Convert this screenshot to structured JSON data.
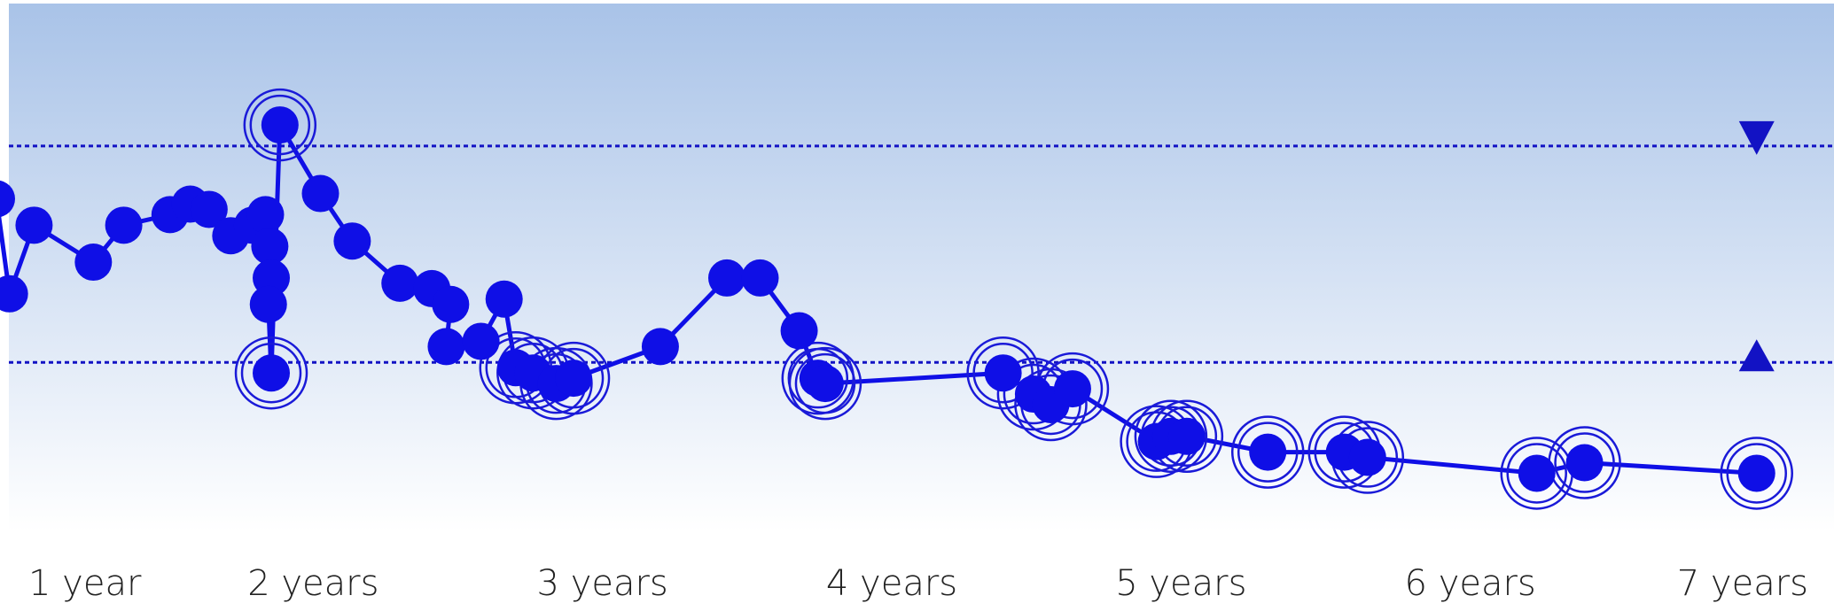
{
  "chart_data": {
    "type": "line",
    "title": "",
    "xlabel": "",
    "ylabel": "",
    "x_unit": "years",
    "xlim": [
      0.9,
      7.1
    ],
    "ylim": [
      0,
      100
    ],
    "x_ticks": [
      {
        "value": 1,
        "label": "1 year"
      },
      {
        "value": 2,
        "label": "2 years"
      },
      {
        "value": 3,
        "label": "3 years"
      },
      {
        "value": 4,
        "label": "4 years"
      },
      {
        "value": 5,
        "label": "5 years"
      },
      {
        "value": 6,
        "label": "6 years"
      },
      {
        "value": 7,
        "label": "7 years"
      }
    ],
    "reference_lines": [
      {
        "name": "upper",
        "y": 73,
        "marker": "down-triangle"
      },
      {
        "name": "lower",
        "y": 32,
        "marker": "up-triangle"
      }
    ],
    "grid": false,
    "legend": "none",
    "colors": {
      "series": "#0f0fe6",
      "reference": "#1212c4",
      "background_top": "#a9c3e8",
      "background_bottom": "#ffffff",
      "highlight_ring": "#1a1ad8"
    },
    "series": [
      {
        "points": [
          {
            "x": 0.905,
            "y": 63
          },
          {
            "x": 0.95,
            "y": 45
          },
          {
            "x": 1.035,
            "y": 58
          },
          {
            "x": 1.24,
            "y": 51
          },
          {
            "x": 1.345,
            "y": 58
          },
          {
            "x": 1.505,
            "y": 60
          },
          {
            "x": 1.575,
            "y": 62
          },
          {
            "x": 1.64,
            "y": 61
          },
          {
            "x": 1.715,
            "y": 56
          },
          {
            "x": 1.79,
            "y": 58
          },
          {
            "x": 1.835,
            "y": 60
          },
          {
            "x": 1.85,
            "y": 54
          },
          {
            "x": 1.855,
            "y": 48
          },
          {
            "x": 1.845,
            "y": 43
          },
          {
            "x": 1.855,
            "y": 30,
            "highlight": true
          },
          {
            "x": 1.885,
            "y": 77,
            "highlight": true
          },
          {
            "x": 2.025,
            "y": 64
          },
          {
            "x": 2.135,
            "y": 55
          },
          {
            "x": 2.3,
            "y": 47
          },
          {
            "x": 2.41,
            "y": 46
          },
          {
            "x": 2.475,
            "y": 43
          },
          {
            "x": 2.46,
            "y": 35
          },
          {
            "x": 2.58,
            "y": 36
          },
          {
            "x": 2.66,
            "y": 44
          },
          {
            "x": 2.7,
            "y": 31,
            "highlight": true
          },
          {
            "x": 2.76,
            "y": 30,
            "highlight": true
          },
          {
            "x": 2.84,
            "y": 28,
            "highlight": true
          },
          {
            "x": 2.9,
            "y": 29,
            "highlight": true
          },
          {
            "x": 3.2,
            "y": 35
          },
          {
            "x": 3.43,
            "y": 48
          },
          {
            "x": 3.545,
            "y": 48
          },
          {
            "x": 3.68,
            "y": 38
          },
          {
            "x": 3.745,
            "y": 29,
            "highlight": true
          },
          {
            "x": 3.77,
            "y": 28,
            "highlight": true
          },
          {
            "x": 4.385,
            "y": 30,
            "highlight": true
          },
          {
            "x": 4.49,
            "y": 26,
            "highlight": true
          },
          {
            "x": 4.55,
            "y": 24,
            "highlight": true
          },
          {
            "x": 4.625,
            "y": 27,
            "highlight": true
          },
          {
            "x": 4.915,
            "y": 17,
            "highlight": true
          },
          {
            "x": 4.965,
            "y": 18,
            "highlight": true
          },
          {
            "x": 5.02,
            "y": 18,
            "highlight": true
          },
          {
            "x": 5.3,
            "y": 15,
            "highlight": true
          },
          {
            "x": 5.565,
            "y": 15,
            "highlight": true
          },
          {
            "x": 5.645,
            "y": 14,
            "highlight": true
          },
          {
            "x": 6.23,
            "y": 11,
            "highlight": true
          },
          {
            "x": 6.395,
            "y": 13,
            "highlight": true
          },
          {
            "x": 6.99,
            "y": 11,
            "highlight": true
          }
        ]
      }
    ]
  }
}
